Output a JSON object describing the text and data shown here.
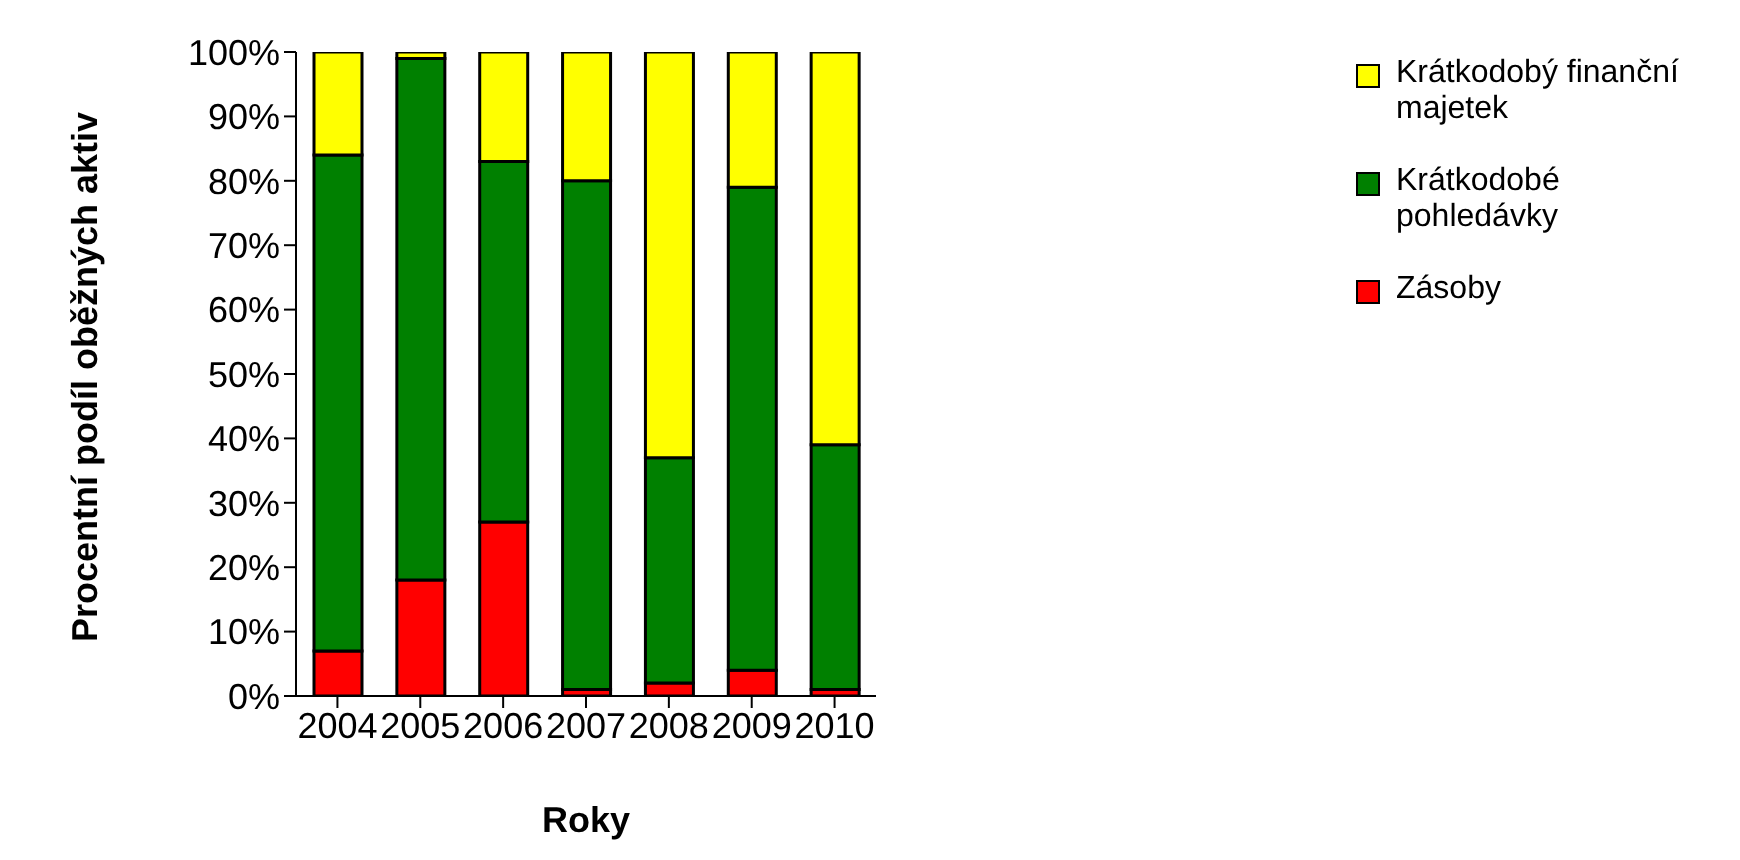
{
  "chart_data": {
    "type": "bar",
    "stacked": true,
    "xlabel": "Roky",
    "ylabel": "Procentní podíl oběžných aktiv",
    "categories": [
      "2004",
      "2005",
      "2006",
      "2007",
      "2008",
      "2009",
      "2010"
    ],
    "series": [
      {
        "name": "Zásoby",
        "color": "#ff0000",
        "values": [
          7,
          18,
          27,
          1,
          2,
          4,
          1
        ]
      },
      {
        "name": "Krátkodobé pohledávky",
        "color": "#008000",
        "values": [
          77,
          81,
          56,
          79,
          35,
          75,
          38
        ]
      },
      {
        "name": "Krátkodobý finanční majetek",
        "color": "#ffff00",
        "values": [
          16,
          1,
          17,
          20,
          63,
          21,
          61
        ]
      }
    ],
    "ylim": [
      0,
      100
    ],
    "yticks": [
      {
        "value": 0,
        "label": "0%"
      },
      {
        "value": 10,
        "label": "10%"
      },
      {
        "value": 20,
        "label": "20%"
      },
      {
        "value": 30,
        "label": "30%"
      },
      {
        "value": 40,
        "label": "40%"
      },
      {
        "value": 50,
        "label": "50%"
      },
      {
        "value": 60,
        "label": "60%"
      },
      {
        "value": 70,
        "label": "70%"
      },
      {
        "value": 80,
        "label": "80%"
      },
      {
        "value": 90,
        "label": "90%"
      },
      {
        "value": 100,
        "label": "100%"
      }
    ],
    "grid": false,
    "legend": "top right"
  }
}
